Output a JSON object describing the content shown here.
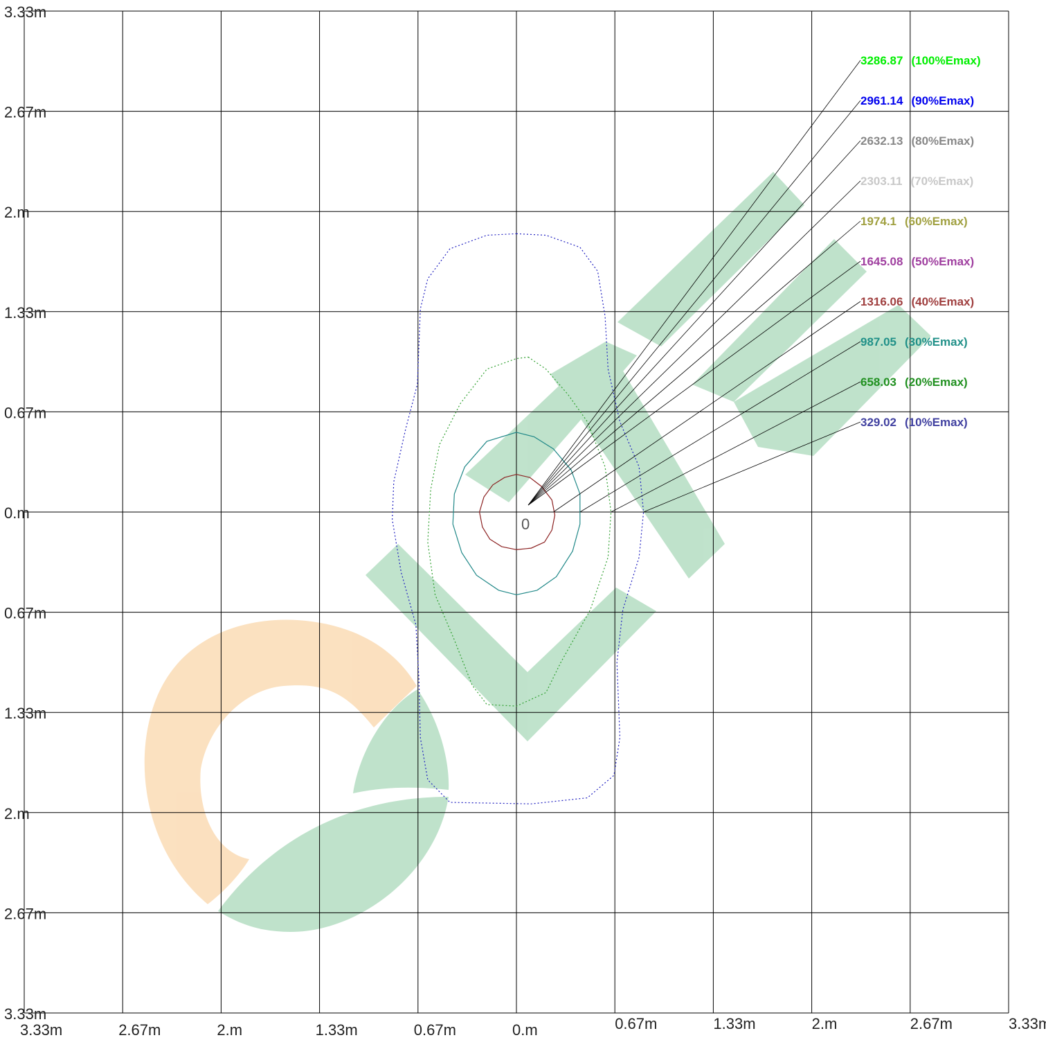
{
  "chart_data": {
    "type": "isolux_contour",
    "x_tick_labels": [
      "3.33m",
      "2.67m",
      "2.m",
      "1.33m",
      "0.67m",
      "0.m",
      "0.67m",
      "1.33m",
      "2.m",
      "2.67m",
      "3.33m"
    ],
    "y_tick_labels": [
      "3.33m",
      "2.67m",
      "2.m",
      "1.33m",
      "0.67m",
      "0.m",
      "0.67m",
      "1.33m",
      "2.m",
      "2.67m",
      "3.33m"
    ],
    "xlim": [
      -3.33,
      3.33
    ],
    "ylim": [
      -3.33,
      3.33
    ],
    "grid": true,
    "origin_label": "0",
    "legend_position": "top-right",
    "levels": [
      {
        "value": "3286.87",
        "label": "(100%Emax)",
        "color": "#00ee00"
      },
      {
        "value": "2961.14",
        "label": "(90%Emax)",
        "color": "#0000ee"
      },
      {
        "value": "2632.13",
        "label": "(80%Emax)",
        "color": "#888888"
      },
      {
        "value": "2303.11",
        "label": "(70%Emax)",
        "color": "#c8c8c8"
      },
      {
        "value": "1974.1",
        "label": "(60%Emax)",
        "color": "#a0a040"
      },
      {
        "value": "1645.08",
        "label": "(50%Emax)",
        "color": "#a040a0"
      },
      {
        "value": "1316.06",
        "label": "(40%Emax)",
        "color": "#a04040"
      },
      {
        "value": "987.05",
        "label": "(30%Emax)",
        "color": "#209088"
      },
      {
        "value": "658.03",
        "label": "(20%Emax)",
        "color": "#209020"
      },
      {
        "value": "329.02",
        "label": "(10%Emax)",
        "color": "#4040a0"
      }
    ],
    "contours": [
      {
        "level": "1316.06",
        "color": "#8b2020",
        "dash": "",
        "points": [
          [
            0.0,
            0.25
          ],
          [
            0.09,
            0.23
          ],
          [
            0.17,
            0.17
          ],
          [
            0.24,
            0.08
          ],
          [
            0.26,
            -0.02
          ],
          [
            0.24,
            -0.12
          ],
          [
            0.19,
            -0.2
          ],
          [
            0.1,
            -0.24
          ],
          [
            0.0,
            -0.25
          ],
          [
            -0.1,
            -0.23
          ],
          [
            -0.18,
            -0.18
          ],
          [
            -0.23,
            -0.1
          ],
          [
            -0.25,
            0.0
          ],
          [
            -0.22,
            0.1
          ],
          [
            -0.16,
            0.18
          ],
          [
            -0.08,
            0.23
          ]
        ]
      },
      {
        "level": "987.05",
        "color": "#208888",
        "dash": "",
        "points": [
          [
            0.0,
            0.53
          ],
          [
            0.12,
            0.5
          ],
          [
            0.25,
            0.42
          ],
          [
            0.37,
            0.28
          ],
          [
            0.43,
            0.12
          ],
          [
            0.43,
            -0.08
          ],
          [
            0.38,
            -0.26
          ],
          [
            0.27,
            -0.43
          ],
          [
            0.14,
            -0.52
          ],
          [
            0.0,
            -0.55
          ],
          [
            -0.12,
            -0.52
          ],
          [
            -0.27,
            -0.42
          ],
          [
            -0.37,
            -0.27
          ],
          [
            -0.43,
            -0.08
          ],
          [
            -0.42,
            0.12
          ],
          [
            -0.35,
            0.3
          ],
          [
            -0.2,
            0.47
          ]
        ]
      },
      {
        "level": "658.03",
        "color": "#30a030",
        "dash": "2 3",
        "points": [
          [
            0.08,
            1.03
          ],
          [
            0.2,
            0.95
          ],
          [
            0.35,
            0.78
          ],
          [
            0.48,
            0.6
          ],
          [
            0.6,
            0.3
          ],
          [
            0.64,
            0.0
          ],
          [
            0.62,
            -0.3
          ],
          [
            0.5,
            -0.65
          ],
          [
            0.3,
            -1.0
          ],
          [
            0.2,
            -1.2
          ],
          [
            0.0,
            -1.29
          ],
          [
            -0.2,
            -1.28
          ],
          [
            -0.3,
            -1.15
          ],
          [
            -0.42,
            -0.85
          ],
          [
            -0.55,
            -0.55
          ],
          [
            -0.6,
            -0.2
          ],
          [
            -0.58,
            0.15
          ],
          [
            -0.52,
            0.45
          ],
          [
            -0.38,
            0.72
          ],
          [
            -0.2,
            0.95
          ],
          [
            0.0,
            1.02
          ]
        ]
      },
      {
        "level": "329.02",
        "color": "#2020c0",
        "dash": "2 3",
        "points": [
          [
            0.0,
            1.85
          ],
          [
            0.2,
            1.84
          ],
          [
            0.43,
            1.76
          ],
          [
            0.55,
            1.6
          ],
          [
            0.6,
            1.3
          ],
          [
            0.62,
            0.95
          ],
          [
            0.7,
            0.6
          ],
          [
            0.83,
            0.3
          ],
          [
            0.86,
            0.0
          ],
          [
            0.83,
            -0.3
          ],
          [
            0.72,
            -0.65
          ],
          [
            0.68,
            -1.0
          ],
          [
            0.7,
            -1.5
          ],
          [
            0.66,
            -1.75
          ],
          [
            0.48,
            -1.9
          ],
          [
            0.1,
            -1.94
          ],
          [
            -0.45,
            -1.93
          ],
          [
            -0.6,
            -1.78
          ],
          [
            -0.65,
            -1.5
          ],
          [
            -0.66,
            -1.1
          ],
          [
            -0.68,
            -0.75
          ],
          [
            -0.78,
            -0.4
          ],
          [
            -0.84,
            -0.05
          ],
          [
            -0.83,
            0.2
          ],
          [
            -0.75,
            0.55
          ],
          [
            -0.67,
            0.85
          ],
          [
            -0.65,
            1.35
          ],
          [
            -0.6,
            1.55
          ],
          [
            -0.45,
            1.75
          ],
          [
            -0.2,
            1.84
          ]
        ]
      }
    ]
  }
}
